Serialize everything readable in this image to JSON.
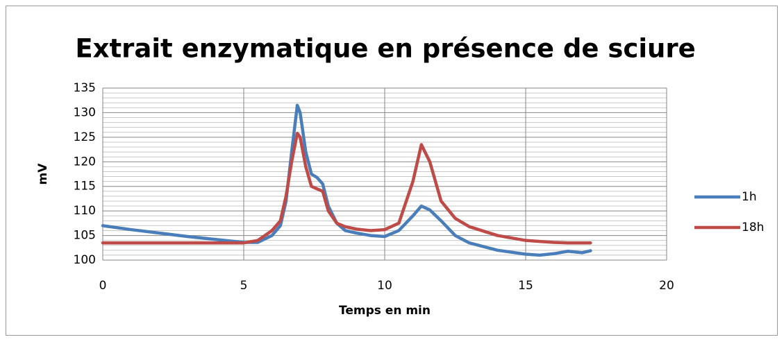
{
  "chart_data": {
    "type": "line",
    "title": "Extrait enzymatique en présence de sciure",
    "xlabel": "Temps en min",
    "ylabel": "mV",
    "x": [
      0,
      1,
      2,
      3,
      4,
      5,
      5.5,
      6,
      6.3,
      6.5,
      6.7,
      6.9,
      7.0,
      7.2,
      7.4,
      7.6,
      7.8,
      8.0,
      8.3,
      8.6,
      9,
      9.5,
      10,
      10.5,
      11,
      11.3,
      11.6,
      12,
      12.5,
      13,
      14,
      15,
      15.5,
      16,
      16.5,
      17,
      17.3
    ],
    "series": [
      {
        "name": "1h",
        "color": "#4a7ebb",
        "values": [
          107,
          106.2,
          105.5,
          104.8,
          104.2,
          103.6,
          103.6,
          105,
          107,
          112,
          122,
          131.5,
          130,
          122,
          117.5,
          116.8,
          115.5,
          111,
          107.5,
          106,
          105.5,
          105,
          104.8,
          106,
          109,
          111,
          110.2,
          108,
          105,
          103.5,
          102,
          101.2,
          101,
          101.3,
          101.8,
          101.5,
          101.9
        ]
      },
      {
        "name": "18h",
        "color": "#be4b48",
        "values": [
          103.5,
          103.5,
          103.5,
          103.5,
          103.5,
          103.5,
          104,
          106,
          108,
          113,
          120,
          125.8,
          125,
          119,
          115,
          114.5,
          114,
          110,
          107.5,
          106.8,
          106.3,
          106,
          106.2,
          107.5,
          116,
          123.5,
          120,
          112,
          108.5,
          106.8,
          105,
          104,
          103.8,
          103.6,
          103.5,
          103.5,
          103.5
        ]
      }
    ],
    "xlim": [
      0,
      20
    ],
    "xticks": [
      0,
      5,
      10,
      15,
      20
    ],
    "ylim": [
      100,
      135
    ],
    "yticks": [
      100,
      105,
      110,
      115,
      120,
      125,
      130,
      135
    ],
    "grid": true,
    "minor_grid": true,
    "legend": "right"
  }
}
